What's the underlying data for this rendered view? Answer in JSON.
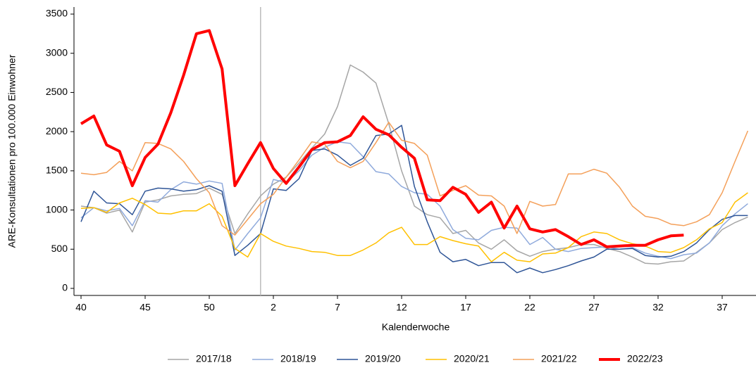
{
  "chart_data": {
    "type": "line",
    "y_label": "ARE-Konsultationen pro 100.000 Einwohner",
    "x_label": "Kalenderwoche",
    "categories": [
      "40",
      null,
      null,
      null,
      null,
      "45",
      null,
      null,
      null,
      null,
      "50",
      null,
      null,
      null,
      null,
      "2",
      null,
      null,
      null,
      null,
      "7",
      null,
      null,
      null,
      null,
      "12",
      null,
      null,
      null,
      null,
      "17",
      null,
      null,
      null,
      null,
      "22",
      null,
      null,
      null,
      null,
      "27",
      null,
      null,
      null,
      null,
      "32",
      null,
      null,
      null,
      null,
      "37",
      null,
      null
    ],
    "ylim": [
      -90,
      3590
    ],
    "yticks": [
      0,
      500,
      1000,
      1500,
      2000,
      2500,
      3000,
      3500
    ],
    "series": [
      {
        "name": "2017/18",
        "color": "#a6a6a6",
        "width": 1.5,
        "values": [
          1050,
          1030,
          960,
          1000,
          720,
          1100,
          1130,
          1180,
          1200,
          1210,
          1280,
          1200,
          700,
          950,
          1180,
          1330,
          1420,
          1600,
          1790,
          1970,
          2320,
          2850,
          2760,
          2620,
          2100,
          1500,
          1050,
          940,
          900,
          700,
          740,
          580,
          500,
          620,
          480,
          410,
          470,
          500,
          520,
          560,
          560,
          510,
          470,
          400,
          320,
          310,
          340,
          350,
          460,
          580,
          750,
          840,
          910
        ]
      },
      {
        "name": "2018/19",
        "color": "#8faadc",
        "width": 1.5,
        "values": [
          900,
          1030,
          990,
          1020,
          800,
          1120,
          1100,
          1260,
          1360,
          1330,
          1370,
          1340,
          490,
          700,
          900,
          1390,
          1350,
          1500,
          1700,
          1800,
          1870,
          1850,
          1680,
          1490,
          1460,
          1300,
          1220,
          1200,
          1050,
          750,
          640,
          620,
          740,
          780,
          770,
          560,
          650,
          500,
          470,
          510,
          520,
          530,
          500,
          520,
          450,
          410,
          380,
          430,
          450,
          580,
          800,
          950,
          1080
        ]
      },
      {
        "name": "2019/20",
        "color": "#2f5597",
        "width": 1.5,
        "values": [
          850,
          1240,
          1090,
          1080,
          940,
          1240,
          1280,
          1270,
          1240,
          1260,
          1310,
          1240,
          420,
          550,
          700,
          1270,
          1250,
          1400,
          1760,
          1780,
          1700,
          1570,
          1660,
          1950,
          1970,
          2080,
          1300,
          850,
          460,
          340,
          370,
          290,
          330,
          330,
          200,
          260,
          200,
          240,
          290,
          350,
          400,
          500,
          500,
          510,
          420,
          400,
          410,
          470,
          580,
          750,
          880,
          930,
          930
        ]
      },
      {
        "name": "2020/21",
        "color": "#ffc000",
        "width": 1.5,
        "values": [
          1020,
          1030,
          970,
          1090,
          1150,
          1070,
          960,
          950,
          990,
          990,
          1080,
          920,
          510,
          400,
          700,
          600,
          540,
          510,
          470,
          460,
          420,
          420,
          490,
          580,
          710,
          780,
          560,
          560,
          660,
          610,
          570,
          540,
          340,
          460,
          360,
          340,
          440,
          450,
          520,
          660,
          720,
          700,
          620,
          570,
          540,
          470,
          460,
          520,
          620,
          760,
          840,
          1100,
          1220
        ]
      },
      {
        "name": "2021/22",
        "color": "#f4a05a",
        "width": 1.5,
        "values": [
          1470,
          1450,
          1480,
          1620,
          1500,
          1860,
          1850,
          1780,
          1620,
          1400,
          1220,
          800,
          680,
          880,
          1080,
          1200,
          1420,
          1640,
          1870,
          1840,
          1620,
          1540,
          1620,
          1860,
          2120,
          1890,
          1850,
          1700,
          1180,
          1250,
          1310,
          1190,
          1180,
          1050,
          700,
          1110,
          1050,
          1070,
          1460,
          1460,
          1520,
          1470,
          1290,
          1050,
          920,
          890,
          820,
          800,
          850,
          940,
          1220,
          1620,
          2010
        ]
      },
      {
        "name": "2022/23",
        "color": "#ff0000",
        "width": 4,
        "values": [
          2100,
          2200,
          1830,
          1750,
          1310,
          1670,
          1840,
          2240,
          2720,
          3250,
          3290,
          2800,
          1310,
          1590,
          1860,
          1530,
          1340,
          1550,
          1770,
          1860,
          1870,
          1950,
          2190,
          2030,
          1960,
          1800,
          1660,
          1130,
          1120,
          1290,
          1200,
          970,
          1100,
          770,
          1050,
          760,
          720,
          750,
          660,
          560,
          620,
          530,
          540,
          550,
          550,
          620,
          670,
          680,
          null,
          null,
          null,
          null,
          null
        ]
      }
    ]
  }
}
